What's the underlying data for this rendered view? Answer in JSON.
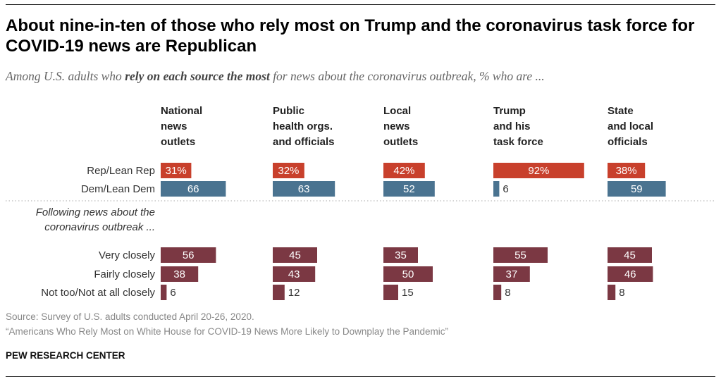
{
  "title": "About nine-in-ten of those who rely most on Trump and the coronavirus task force for COVID-19 news are Republican",
  "subtitle": {
    "prefix": "Among U.S. adults who ",
    "emphasis": "rely on each source the most",
    "suffix": " for news about the coronavirus outbreak, % who are ..."
  },
  "chart_data": {
    "type": "bar",
    "orientation": "horizontal",
    "facets": [
      [
        "National",
        "news",
        "outlets"
      ],
      [
        "Public",
        "health orgs.",
        "and officials"
      ],
      [
        "Local",
        "news",
        "outlets"
      ],
      [
        "Trump",
        "and his",
        "task force"
      ],
      [
        "State",
        "and local",
        "officials"
      ]
    ],
    "section_label": [
      "Following news about the",
      "coronavirus outbreak ..."
    ],
    "rows": [
      {
        "label": "Rep/Lean Rep",
        "color": "#c8402c",
        "values": [
          31,
          32,
          42,
          92,
          38
        ],
        "suffix": "%",
        "group": "party"
      },
      {
        "label": "Dem/Lean Dem",
        "color": "#4a7390",
        "values": [
          66,
          63,
          52,
          6,
          59
        ],
        "suffix": "",
        "group": "party"
      },
      {
        "label": "Very closely",
        "color": "#7b3843",
        "values": [
          56,
          45,
          35,
          55,
          45
        ],
        "suffix": "",
        "group": "following"
      },
      {
        "label": "Fairly closely",
        "color": "#7b3843",
        "values": [
          38,
          43,
          50,
          37,
          46
        ],
        "suffix": "",
        "group": "following"
      },
      {
        "label": "Not too/Not at all closely",
        "color": "#7b3843",
        "values": [
          6,
          12,
          15,
          8,
          8
        ],
        "suffix": "",
        "group": "following"
      }
    ]
  },
  "source": "Source: Survey of U.S. adults conducted April 20-26, 2020.",
  "report": "“Americans Who Rely Most on White House for COVID-19 News More Likely to Downplay the Pandemic”",
  "brand": "PEW RESEARCH CENTER"
}
